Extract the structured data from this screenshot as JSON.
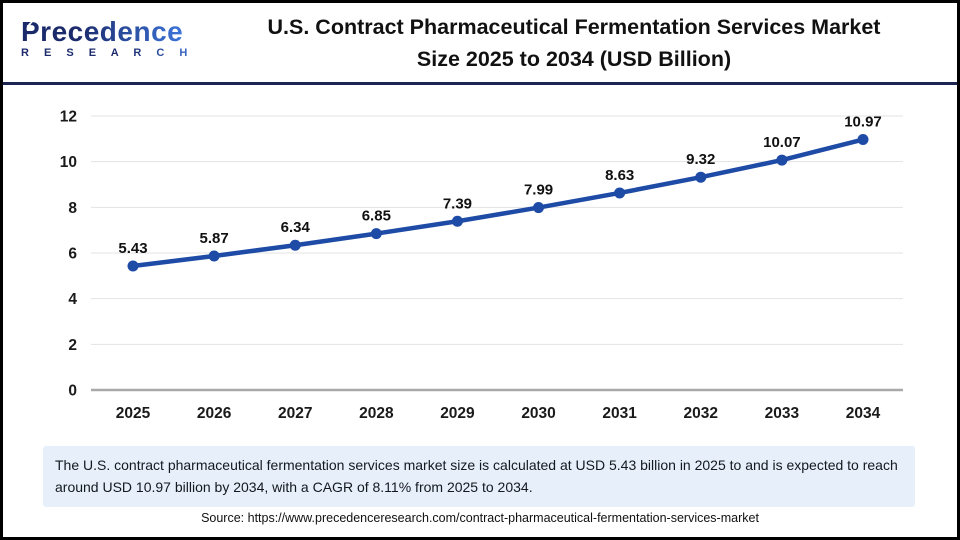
{
  "logo": {
    "brand": "Precedence",
    "sub": "R E S E A R C H",
    "brand_color_dark": "#1b2a6b",
    "brand_color_light": "#3c74d9"
  },
  "header": {
    "title_line1": "U.S. Contract Pharmaceutical Fermentation Services Market",
    "title_line2": "Size 2025 to 2034 (USD Billion)"
  },
  "chart_data": {
    "type": "line",
    "title": "U.S. Contract Pharmaceutical Fermentation Services Market Size 2025 to 2034 (USD Billion)",
    "categories": [
      "2025",
      "2026",
      "2027",
      "2028",
      "2029",
      "2030",
      "2031",
      "2032",
      "2033",
      "2034"
    ],
    "values": [
      5.43,
      5.87,
      6.34,
      6.85,
      7.39,
      7.99,
      8.63,
      9.32,
      10.07,
      10.97
    ],
    "xlabel": "",
    "ylabel": "",
    "ylim": [
      0,
      12
    ],
    "ytick_step": 2,
    "grid": true,
    "legend": "none",
    "line_color": "#1e4ba6",
    "marker_color": "#1e4ba6",
    "grid_color": "#e3e3e3",
    "axis_line_color": "#a9a9a9",
    "tick_label_color": "#1a1a1a",
    "data_label_color": "#111111"
  },
  "summary": {
    "text": "The U.S. contract pharmaceutical fermentation services market size is calculated at USD 5.43 billion in 2025 to and is expected to reach around USD 10.97 billion by 2034, with a CAGR of 8.11% from 2025 to 2034."
  },
  "source": {
    "text": "Source: https://www.precedenceresearch.com/contract-pharmaceutical-fermentation-services-market"
  }
}
